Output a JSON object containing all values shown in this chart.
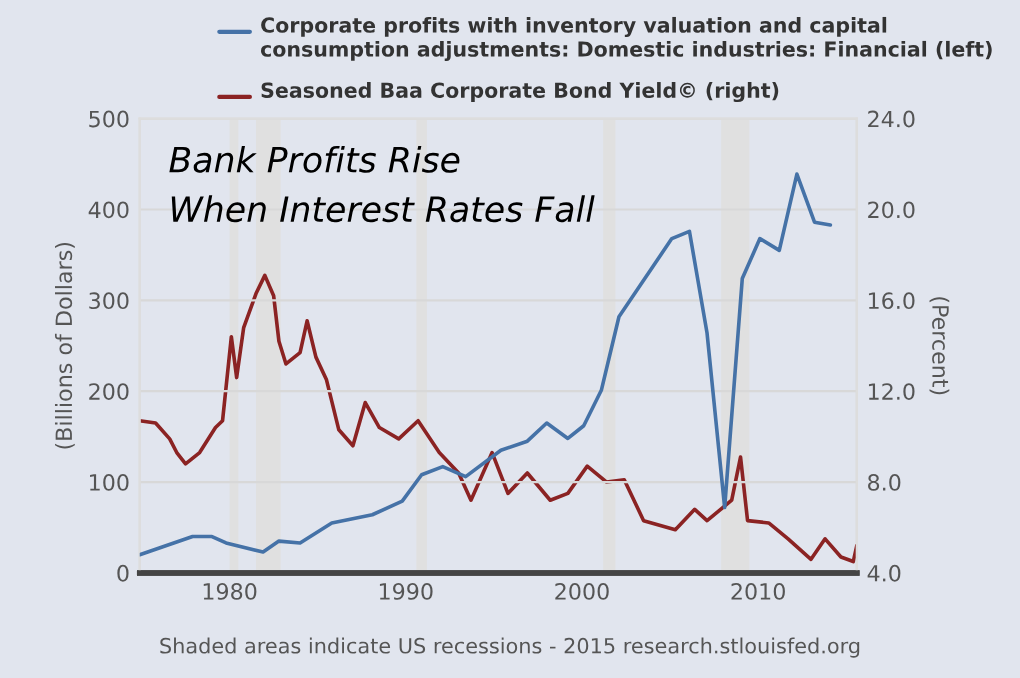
{
  "chart_data": {
    "type": "line",
    "ylabel": "(Billions of Dollars)",
    "y2label": "(Percent)",
    "annotations": [
      "Bank Profits Rise\nWhen Interest Rates Fall",
      "Shaded areas indicate US recessions - 2015 research.stlouisfed.org"
    ],
    "series": [
      {
        "name": "Corporate profits with inventory valuation and capital consumption adjustments: Domestic industries: Financial (left)",
        "color": "#4572a7",
        "x": [
          1974.9,
          1977.9,
          1979.0,
          1979.8,
          1981.9,
          1982.8,
          1984.0,
          1985.8,
          1988.1,
          1989.8,
          1990.9,
          1992.1,
          1993.4,
          1995.4,
          1996.9,
          1998.0,
          1999.2,
          2000.1,
          2001.1,
          2002.1,
          2005.1,
          2006.1,
          2007.1,
          2008.1,
          2009.1,
          2010.1,
          2011.2,
          2012.2,
          2013.2,
          2014.1
        ],
        "values": [
          20,
          40,
          40,
          33,
          23,
          35,
          33,
          55,
          64,
          79,
          108,
          117,
          106,
          135,
          145,
          165,
          148,
          162,
          201,
          282,
          368,
          376,
          264,
          72,
          324,
          368,
          355,
          439,
          386,
          383
        ]
      },
      {
        "name": "Seasoned Baa Corporate Bond Yield© (right)",
        "color": "#8b2323",
        "axis": "y2",
        "x": [
          1974.9,
          1975.8,
          1976.6,
          1977.0,
          1977.5,
          1978.3,
          1979.2,
          1979.6,
          1980.1,
          1980.4,
          1980.8,
          1981.5,
          1982.0,
          1982.5,
          1982.8,
          1983.2,
          1984.0,
          1984.4,
          1984.9,
          1985.5,
          1986.2,
          1987.0,
          1987.7,
          1988.5,
          1989.6,
          1990.7,
          1991.9,
          1993.0,
          1993.7,
          1994.9,
          1995.8,
          1996.9,
          1998.2,
          1999.2,
          2000.3,
          2001.4,
          2002.4,
          2003.5,
          2005.3,
          2006.4,
          2007.1,
          2008.5,
          2009.0,
          2009.4,
          2010.6,
          2011.7,
          2013.0,
          2013.8,
          2014.7,
          2015.4,
          2015.6
        ],
        "values": [
          10.7,
          10.6,
          9.9,
          9.3,
          8.8,
          9.3,
          10.4,
          10.7,
          14.4,
          12.6,
          14.8,
          16.3,
          17.1,
          16.2,
          14.2,
          13.2,
          13.7,
          15.1,
          13.5,
          12.5,
          10.3,
          9.6,
          11.5,
          10.4,
          9.9,
          10.7,
          9.3,
          8.4,
          7.2,
          9.3,
          7.5,
          8.4,
          7.2,
          7.5,
          8.7,
          8.0,
          8.1,
          6.3,
          5.9,
          6.8,
          6.3,
          7.2,
          9.1,
          6.3,
          6.2,
          5.5,
          4.6,
          5.5,
          4.7,
          4.5,
          5.2
        ]
      }
    ],
    "xlim": [
      1974.9,
      2015.6
    ],
    "xticks": [
      1980,
      1990,
      2000,
      2010
    ],
    "ylim": [
      0,
      500
    ],
    "yticks": [
      0,
      100,
      200,
      300,
      400,
      500
    ],
    "y2lim": [
      4,
      24
    ],
    "y2ticks": [
      {
        "value": 4,
        "label": "4.0"
      },
      {
        "value": 8,
        "label": "8.0"
      },
      {
        "value": 12,
        "label": "12.0"
      },
      {
        "value": 16,
        "label": "16.0"
      },
      {
        "value": 20,
        "label": "20.0"
      },
      {
        "value": 24,
        "label": "24.0"
      }
    ],
    "bands": [
      {
        "axis": "x",
        "from": 1980.0,
        "to": 1980.5,
        "color": "#e0e0e0"
      },
      {
        "axis": "x",
        "from": 1981.5,
        "to": 1982.9,
        "color": "#e0e0e0"
      },
      {
        "axis": "x",
        "from": 1990.6,
        "to": 1991.2,
        "color": "#e0e0e0"
      },
      {
        "axis": "x",
        "from": 2001.2,
        "to": 2001.9,
        "color": "#e0e0e0"
      },
      {
        "axis": "x",
        "from": 2007.9,
        "to": 2009.5,
        "color": "#e0e0e0"
      }
    ],
    "grid": "y",
    "legend": "top",
    "line_style": "solid"
  }
}
